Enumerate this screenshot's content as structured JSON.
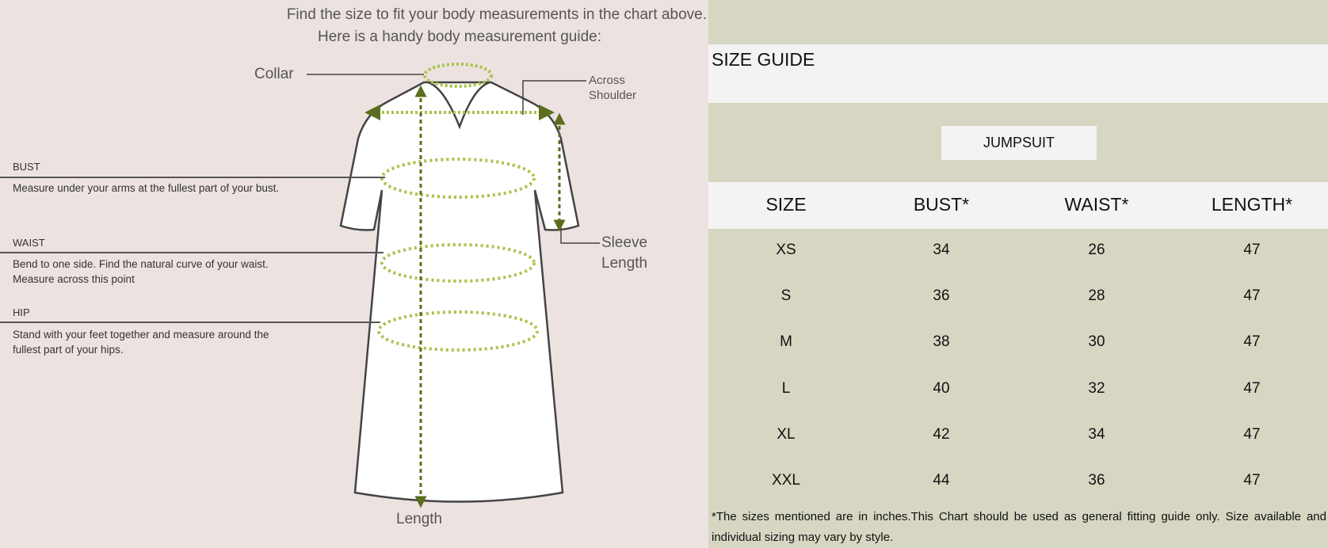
{
  "guide": {
    "heading_line1": "Find the size to fit your body measurements in the chart above.",
    "heading_line2": "Here is a handy body measurement guide:",
    "collar": "Collar",
    "across_shoulder_1": "Across",
    "across_shoulder_2": "Shoulder",
    "sleeve_length_1": "Sleeve",
    "sleeve_length_2": "Length",
    "length": "Length",
    "bust_title": "BUST",
    "bust_desc": "Measure under your arms at the fullest part of your bust.",
    "waist_title": "WAIST",
    "waist_desc_1": "Bend to one side. Find the natural curve of your waist.",
    "waist_desc_2": "Measure across this point",
    "hip_title": "HIP",
    "hip_desc_1": "Stand with your feet together and measure around the",
    "hip_desc_2": "fullest part of your hips."
  },
  "size_guide": {
    "title": "SIZE GUIDE",
    "category": "JUMPSUIT",
    "headers": [
      "SIZE",
      "BUST*",
      "WAIST*",
      "LENGTH*"
    ],
    "rows": [
      [
        "XS",
        "34",
        "26",
        "47"
      ],
      [
        "S",
        "36",
        "28",
        "47"
      ],
      [
        "M",
        "38",
        "30",
        "47"
      ],
      [
        "L",
        "40",
        "32",
        "47"
      ],
      [
        "XL",
        "42",
        "34",
        "47"
      ],
      [
        "XXL",
        "44",
        "36",
        "47"
      ]
    ],
    "note": "*The sizes mentioned are in inches.This Chart should be used as general fitting guide only. Size available and individual sizing may vary by style."
  },
  "colors": {
    "left_bg": "#ece3e1",
    "right_bg": "#d6d6c3",
    "band": "#f3f3f3",
    "measure_green": "#a9c24a",
    "arrow_green": "#5a6e1c"
  }
}
